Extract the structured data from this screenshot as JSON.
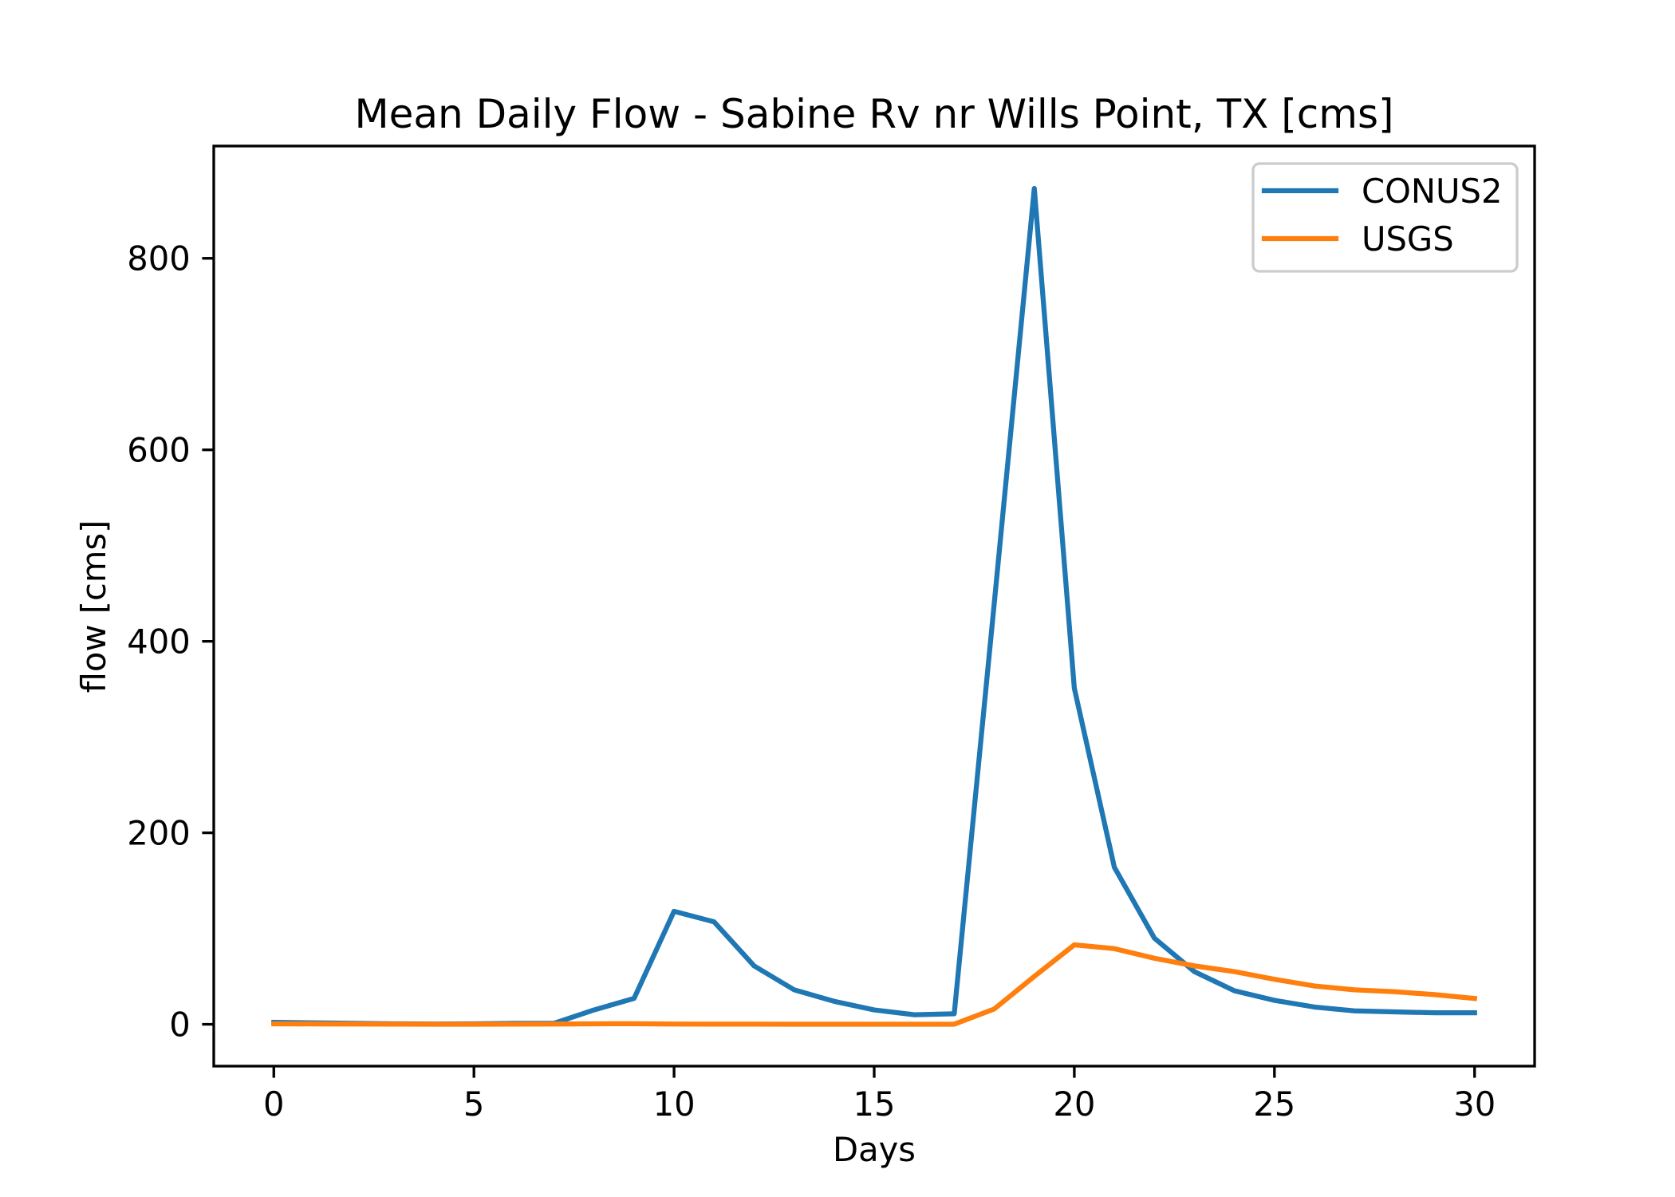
{
  "chart_data": {
    "type": "line",
    "title": "Mean Daily Flow - Sabine Rv nr Wills Point, TX [cms]",
    "xlabel": "Days",
    "ylabel": "flow [cms]",
    "x": [
      0,
      1,
      2,
      3,
      4,
      5,
      6,
      7,
      8,
      9,
      10,
      11,
      12,
      13,
      14,
      15,
      16,
      17,
      18,
      19,
      20,
      21,
      22,
      23,
      24,
      25,
      26,
      27,
      28,
      29,
      30
    ],
    "series": [
      {
        "name": "CONUS2",
        "color": "#1f77b4",
        "values": [
          2,
          1.5,
          1,
          0.5,
          0.3,
          0.5,
          1,
          1,
          15,
          27,
          118,
          107,
          61,
          36,
          24,
          15,
          10,
          11,
          440,
          873,
          351,
          164,
          90,
          55,
          35,
          25,
          18,
          14,
          13,
          12,
          12
        ]
      },
      {
        "name": "USGS",
        "color": "#ff7f0e",
        "values": [
          0.5,
          0.4,
          0.3,
          0.2,
          0.1,
          0.1,
          0.2,
          0.3,
          0.5,
          0.6,
          0.3,
          0.2,
          0.2,
          0.1,
          0.1,
          0.1,
          0.1,
          0.1,
          16,
          50,
          83,
          79,
          69,
          61,
          55,
          47,
          40,
          36,
          34,
          31,
          27
        ]
      }
    ],
    "xlim": [
      -1.5,
      31.5
    ],
    "ylim": [
      -43.7,
      917.3
    ],
    "xticks": [
      0,
      5,
      10,
      15,
      20,
      25,
      30
    ],
    "yticks": [
      0,
      200,
      400,
      600,
      800
    ],
    "grid": false,
    "legend": "upper right"
  }
}
